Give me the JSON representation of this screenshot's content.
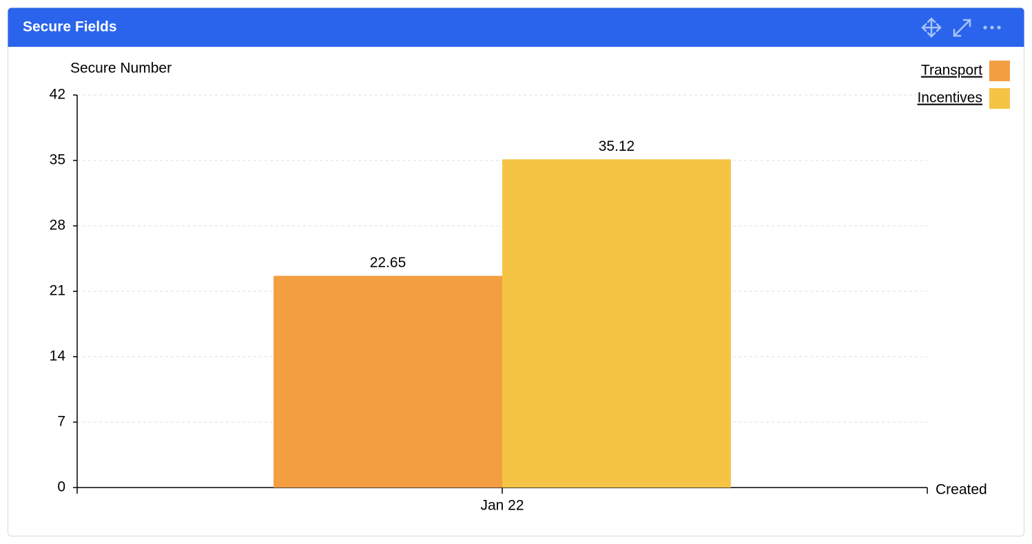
{
  "chart_data": {
    "type": "bar",
    "title": "Secure Fields",
    "y_label": "Secure Number",
    "x_label": "Created",
    "categories": [
      "Jan 22"
    ],
    "series": [
      {
        "name": "Transport",
        "color": "#f39e41",
        "values": [
          22.65
        ]
      },
      {
        "name": "Incentives",
        "color": "#f6c445",
        "values": [
          35.12
        ]
      }
    ],
    "ylim": [
      0,
      42
    ],
    "yticks": [
      0,
      7,
      14,
      21,
      28,
      35,
      42
    ],
    "grid": true,
    "legend": "top-right"
  }
}
